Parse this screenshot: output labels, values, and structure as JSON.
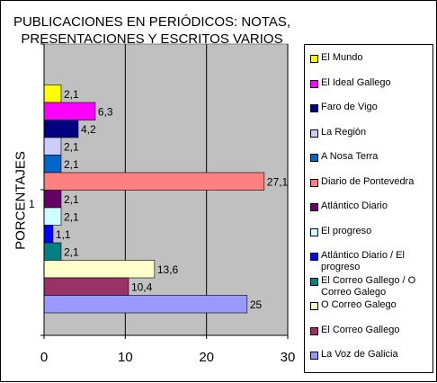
{
  "chart_data": {
    "type": "bar",
    "orientation": "horizontal",
    "title": "PUBLICACIONES EN PERIÓDICOS: NOTAS, PRESENTACIONES Y ESCRITOS VARIOS",
    "title_lines": [
      "PUBLICACIONES EN PERIÓDICOS: NOTAS,",
      "PRESENTACIONES Y ESCRITOS VARIOS"
    ],
    "ylabel": "PORCENTAJES",
    "category_label": "1",
    "xlim": [
      0,
      30
    ],
    "xticks": [
      0,
      10,
      20,
      30
    ],
    "grid": true,
    "plot_background": "#c0c0c0",
    "legend_position": "right",
    "series": [
      {
        "name": "El Mundo",
        "value": 2.1,
        "label": "2,1",
        "color": "#ffff00"
      },
      {
        "name": "El Ideal Gallego",
        "value": 6.3,
        "label": "6,3",
        "color": "#ff00ff"
      },
      {
        "name": "Faro de Vigo",
        "value": 4.2,
        "label": "4,2",
        "color": "#000080"
      },
      {
        "name": "La Región",
        "value": 2.1,
        "label": "2,1",
        "color": "#ccccff"
      },
      {
        "name": "A Nosa Terra",
        "value": 2.1,
        "label": "2,1",
        "color": "#0066cc"
      },
      {
        "name": "Diario de Pontevedra",
        "value": 27.1,
        "label": "27,1",
        "color": "#ff8080"
      },
      {
        "name": "Atlántico Diario",
        "value": 2.1,
        "label": "2,1",
        "color": "#660066"
      },
      {
        "name": "El progreso",
        "value": 2.1,
        "label": "2,1",
        "color": "#ccffff"
      },
      {
        "name": "Atlántico Diario / El progreso",
        "value": 1.1,
        "label": "1,1",
        "color": "#0000ff"
      },
      {
        "name": "El Correo Gallego / O Correo Galego",
        "value": 2.1,
        "label": "2,1",
        "color": "#008080"
      },
      {
        "name": "O Correo Galego",
        "value": 13.6,
        "label": "13,6",
        "color": "#ffffcc"
      },
      {
        "name": "El Correo Gallego",
        "value": 10.4,
        "label": "10,4",
        "color": "#993366"
      },
      {
        "name": "La Voz de Galicia",
        "value": 25,
        "label": "25",
        "color": "#9999ff"
      }
    ]
  }
}
